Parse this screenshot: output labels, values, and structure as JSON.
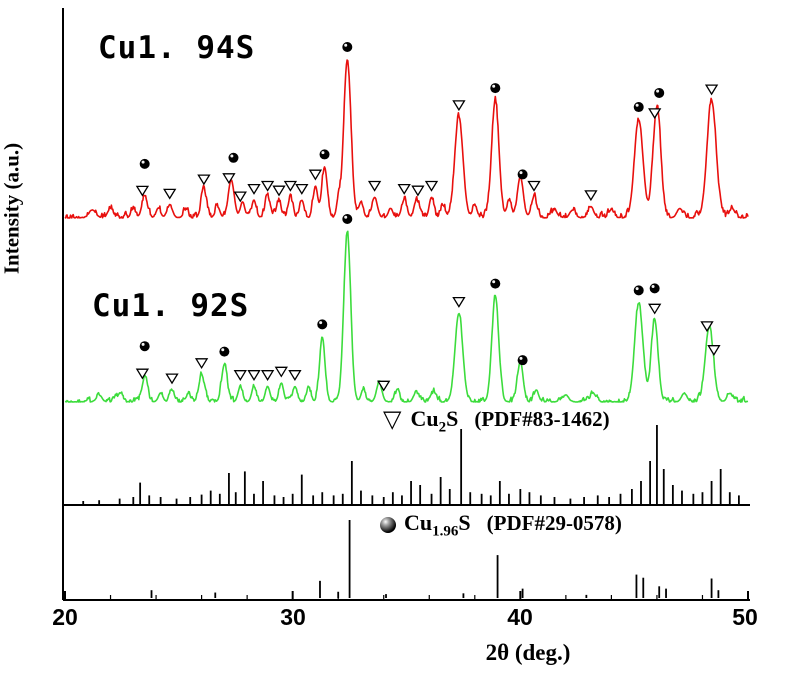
{
  "figure": {
    "background": "#ffffff",
    "axis_color": "#000000"
  },
  "chart_data": {
    "type": "line",
    "title": "",
    "xlabel": "2θ (deg.)",
    "ylabel": "Intensity (a.u.)",
    "xlim": [
      20,
      50
    ],
    "x_ticks": [
      20,
      30,
      40,
      50
    ],
    "x_tick_labels": [
      "20",
      "30",
      "40",
      "50"
    ],
    "x_minor_tick_step": 2,
    "x_major_tick_step": 10,
    "grid": false,
    "series": [
      {
        "name": "Cu1. 94S",
        "color": "#e8100e",
        "peaks": [
          [
            21.2,
            0.05,
            0.15
          ],
          [
            22.0,
            0.06,
            0.12
          ],
          [
            23.0,
            0.06,
            0.1
          ],
          [
            23.5,
            0.14,
            0.12
          ],
          [
            24.1,
            0.06,
            0.1
          ],
          [
            24.6,
            0.08,
            0.12
          ],
          [
            25.3,
            0.05,
            0.1
          ],
          [
            26.1,
            0.17,
            0.12
          ],
          [
            26.7,
            0.07,
            0.1
          ],
          [
            27.3,
            0.24,
            0.13
          ],
          [
            27.8,
            0.1,
            0.1
          ],
          [
            28.3,
            0.11,
            0.1
          ],
          [
            28.9,
            0.13,
            0.11
          ],
          [
            29.4,
            0.1,
            0.1
          ],
          [
            29.9,
            0.13,
            0.1
          ],
          [
            30.4,
            0.11,
            0.1
          ],
          [
            31.0,
            0.2,
            0.1
          ],
          [
            31.4,
            0.32,
            0.12
          ],
          [
            32.0,
            0.1,
            0.08
          ],
          [
            32.4,
            1.0,
            0.16
          ],
          [
            33.0,
            0.1,
            0.1
          ],
          [
            33.6,
            0.13,
            0.12
          ],
          [
            34.3,
            0.06,
            0.1
          ],
          [
            34.9,
            0.11,
            0.12
          ],
          [
            35.5,
            0.1,
            0.1
          ],
          [
            36.1,
            0.13,
            0.1
          ],
          [
            36.6,
            0.08,
            0.1
          ],
          [
            37.3,
            0.64,
            0.18
          ],
          [
            38.0,
            0.08,
            0.1
          ],
          [
            38.9,
            0.74,
            0.16
          ],
          [
            39.5,
            0.1,
            0.1
          ],
          [
            40.0,
            0.26,
            0.13
          ],
          [
            40.6,
            0.13,
            0.12
          ],
          [
            41.5,
            0.05,
            0.12
          ],
          [
            42.3,
            0.05,
            0.12
          ],
          [
            43.1,
            0.07,
            0.12
          ],
          [
            44.0,
            0.05,
            0.12
          ],
          [
            45.2,
            0.62,
            0.19
          ],
          [
            46.0,
            0.7,
            0.17
          ],
          [
            47.0,
            0.06,
            0.12
          ],
          [
            48.4,
            0.74,
            0.2
          ],
          [
            49.3,
            0.06,
            0.12
          ]
        ],
        "markers": {
          "triangles": [
            23.4,
            24.6,
            26.1,
            27.2,
            27.7,
            28.3,
            28.9,
            29.4,
            29.9,
            30.4,
            31.0,
            33.6,
            34.9,
            35.5,
            36.1,
            37.3,
            40.6,
            43.1,
            45.9,
            48.4
          ],
          "spheres": [
            23.5,
            27.4,
            31.4,
            32.4,
            38.9,
            40.1,
            45.2,
            46.1
          ]
        }
      },
      {
        "name": "Cu1. 92S",
        "color": "#3cdc3c",
        "peaks": [
          [
            21.5,
            0.04,
            0.12
          ],
          [
            22.4,
            0.05,
            0.1
          ],
          [
            23.5,
            0.14,
            0.12
          ],
          [
            24.2,
            0.05,
            0.1
          ],
          [
            24.7,
            0.07,
            0.1
          ],
          [
            25.4,
            0.04,
            0.1
          ],
          [
            26.0,
            0.16,
            0.12
          ],
          [
            27.0,
            0.22,
            0.12
          ],
          [
            27.7,
            0.09,
            0.1
          ],
          [
            28.3,
            0.09,
            0.1
          ],
          [
            28.9,
            0.09,
            0.1
          ],
          [
            29.5,
            0.11,
            0.1
          ],
          [
            30.1,
            0.09,
            0.1
          ],
          [
            30.7,
            0.08,
            0.1
          ],
          [
            31.3,
            0.38,
            0.12
          ],
          [
            32.4,
            1.0,
            0.15
          ],
          [
            33.1,
            0.07,
            0.1
          ],
          [
            33.8,
            0.11,
            0.12
          ],
          [
            34.6,
            0.05,
            0.1
          ],
          [
            35.4,
            0.05,
            0.1
          ],
          [
            36.2,
            0.06,
            0.1
          ],
          [
            37.3,
            0.52,
            0.17
          ],
          [
            38.9,
            0.62,
            0.15
          ],
          [
            40.0,
            0.24,
            0.12
          ],
          [
            40.7,
            0.07,
            0.1
          ],
          [
            42.0,
            0.04,
            0.12
          ],
          [
            43.2,
            0.05,
            0.12
          ],
          [
            45.2,
            0.58,
            0.18
          ],
          [
            45.9,
            0.48,
            0.15
          ],
          [
            47.2,
            0.05,
            0.12
          ],
          [
            48.3,
            0.44,
            0.18
          ],
          [
            49.2,
            0.05,
            0.12
          ]
        ],
        "markers": {
          "triangles": [
            23.4,
            24.7,
            26.0,
            27.7,
            28.3,
            28.9,
            29.5,
            30.1,
            34.0,
            37.3,
            45.9,
            48.2,
            48.5
          ],
          "spheres": [
            23.5,
            27.0,
            31.3,
            32.4,
            38.9,
            40.1,
            45.2,
            45.9
          ]
        }
      }
    ],
    "references": [
      {
        "marker": "open-triangle",
        "glyph": "▽",
        "label": {
          "prefix": "Cu",
          "sub": "2",
          "suffix": "S",
          "pdf": "(PDF#83-1462)"
        },
        "sticks": [
          [
            20.8,
            0.05
          ],
          [
            21.5,
            0.06
          ],
          [
            22.4,
            0.08
          ],
          [
            23.0,
            0.1
          ],
          [
            23.3,
            0.28
          ],
          [
            23.7,
            0.12
          ],
          [
            24.2,
            0.1
          ],
          [
            24.9,
            0.08
          ],
          [
            25.5,
            0.1
          ],
          [
            26.0,
            0.13
          ],
          [
            26.4,
            0.18
          ],
          [
            26.8,
            0.14
          ],
          [
            27.2,
            0.4
          ],
          [
            27.5,
            0.16
          ],
          [
            27.9,
            0.42
          ],
          [
            28.3,
            0.14
          ],
          [
            28.7,
            0.3
          ],
          [
            29.2,
            0.12
          ],
          [
            29.6,
            0.1
          ],
          [
            30.0,
            0.14
          ],
          [
            30.4,
            0.38
          ],
          [
            30.9,
            0.12
          ],
          [
            31.3,
            0.16
          ],
          [
            31.8,
            0.12
          ],
          [
            32.2,
            0.14
          ],
          [
            32.6,
            0.55
          ],
          [
            33.0,
            0.18
          ],
          [
            33.5,
            0.12
          ],
          [
            34.0,
            0.1
          ],
          [
            34.4,
            0.16
          ],
          [
            34.8,
            0.12
          ],
          [
            35.2,
            0.3
          ],
          [
            35.6,
            0.25
          ],
          [
            36.1,
            0.14
          ],
          [
            36.5,
            0.35
          ],
          [
            36.9,
            0.2
          ],
          [
            37.4,
            0.95
          ],
          [
            37.8,
            0.16
          ],
          [
            38.3,
            0.14
          ],
          [
            38.7,
            0.12
          ],
          [
            39.1,
            0.3
          ],
          [
            39.5,
            0.14
          ],
          [
            40.0,
            0.2
          ],
          [
            40.4,
            0.16
          ],
          [
            40.9,
            0.12
          ],
          [
            41.5,
            0.1
          ],
          [
            42.2,
            0.08
          ],
          [
            42.8,
            0.1
          ],
          [
            43.4,
            0.12
          ],
          [
            43.9,
            0.1
          ],
          [
            44.4,
            0.14
          ],
          [
            44.9,
            0.2
          ],
          [
            45.3,
            0.3
          ],
          [
            45.7,
            0.55
          ],
          [
            46.0,
            1.0
          ],
          [
            46.3,
            0.45
          ],
          [
            46.7,
            0.25
          ],
          [
            47.1,
            0.18
          ],
          [
            47.6,
            0.14
          ],
          [
            48.0,
            0.16
          ],
          [
            48.4,
            0.3
          ],
          [
            48.8,
            0.45
          ],
          [
            49.2,
            0.16
          ],
          [
            49.6,
            0.12
          ]
        ]
      },
      {
        "marker": "sphere",
        "label": {
          "prefix": "Cu",
          "sub": "1.96",
          "suffix": "S",
          "pdf": "(PDF#29-0578)"
        },
        "sticks": [
          [
            23.8,
            0.1
          ],
          [
            26.6,
            0.07
          ],
          [
            31.2,
            0.22
          ],
          [
            32.0,
            0.08
          ],
          [
            32.5,
            1.0
          ],
          [
            34.1,
            0.05
          ],
          [
            37.5,
            0.06
          ],
          [
            39.0,
            0.55
          ],
          [
            40.1,
            0.12
          ],
          [
            42.9,
            0.04
          ],
          [
            45.1,
            0.3
          ],
          [
            45.4,
            0.26
          ],
          [
            46.1,
            0.15
          ],
          [
            46.4,
            0.12
          ],
          [
            48.4,
            0.25
          ],
          [
            48.7,
            0.1
          ]
        ]
      }
    ]
  }
}
